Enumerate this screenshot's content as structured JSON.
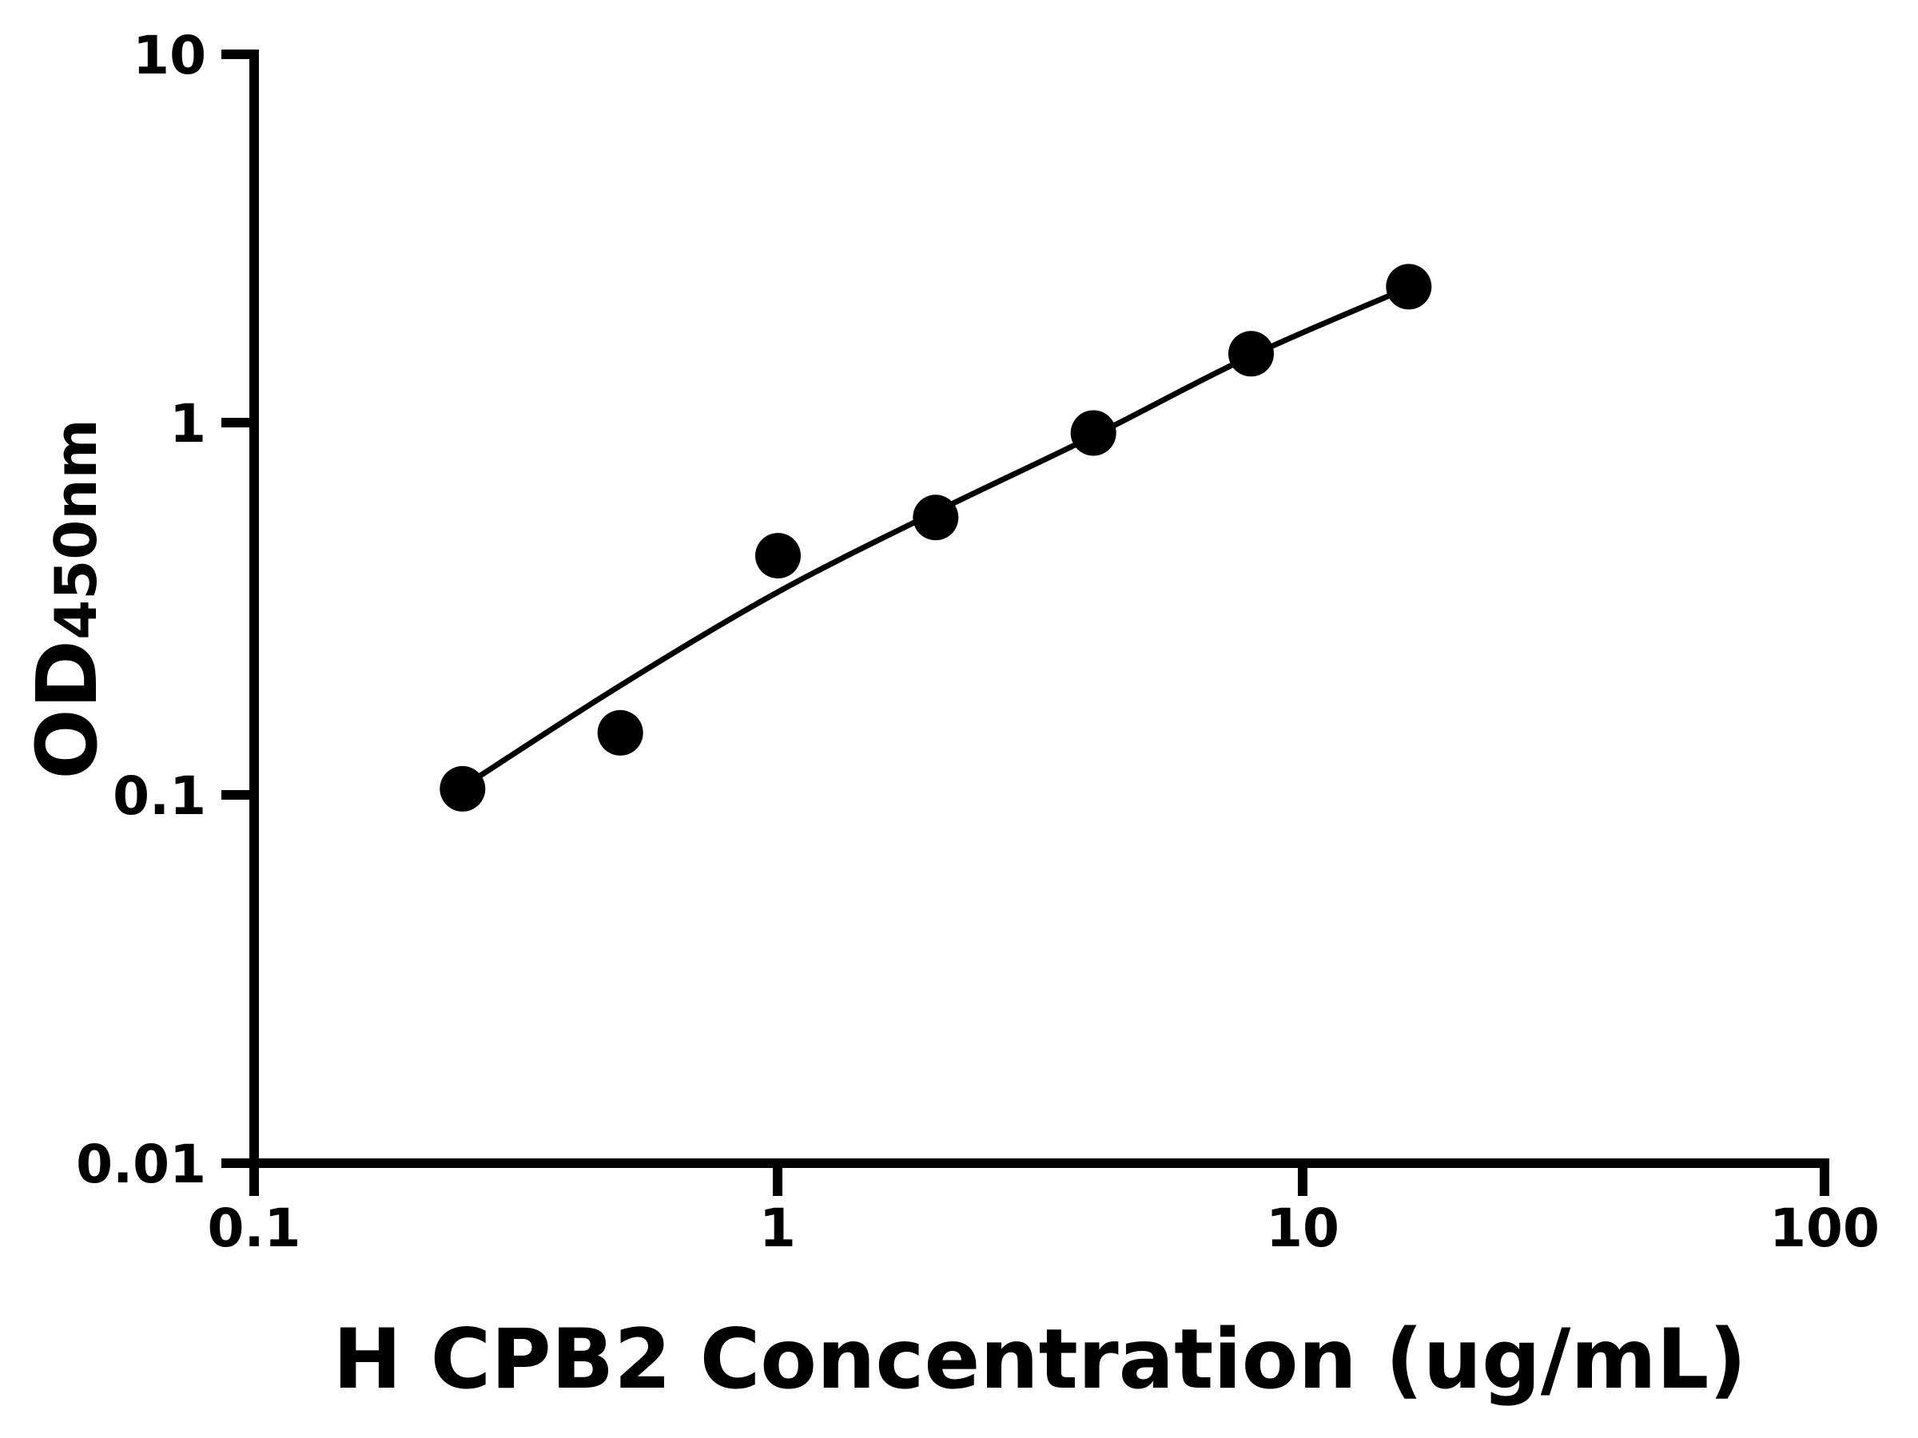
{
  "chart_data": {
    "type": "scatter",
    "title": "",
    "xlabel": "H CPB2 Concentration (ug/mL)",
    "ylabel_main": "OD",
    "ylabel_sub": "450nm",
    "xscale": "log",
    "yscale": "log",
    "xlim": [
      0.1,
      100
    ],
    "ylim": [
      0.01,
      10
    ],
    "x_ticks": [
      "0.1",
      "1",
      "10",
      "100"
    ],
    "y_ticks": [
      "10",
      "1",
      "0.1",
      "0.01"
    ],
    "grid": "off",
    "legend": "none",
    "marker_color": "#000000",
    "line_color": "#000000",
    "axis_color": "#000000",
    "background_color": "#ffffff",
    "points": [
      {
        "x": 0.25,
        "y": 0.103
      },
      {
        "x": 0.5,
        "y": 0.146
      },
      {
        "x": 1,
        "y": 0.44
      },
      {
        "x": 2,
        "y": 0.558
      },
      {
        "x": 4,
        "y": 0.945
      },
      {
        "x": 8,
        "y": 1.548
      },
      {
        "x": 16,
        "y": 2.35
      }
    ],
    "fit_curve": [
      {
        "x": 0.25,
        "y": 0.104
      },
      {
        "x": 0.5,
        "y": 0.196
      },
      {
        "x": 1,
        "y": 0.351
      },
      {
        "x": 2,
        "y": 0.578
      },
      {
        "x": 4,
        "y": 0.928
      },
      {
        "x": 8,
        "y": 1.528
      },
      {
        "x": 16,
        "y": 2.34
      }
    ]
  }
}
